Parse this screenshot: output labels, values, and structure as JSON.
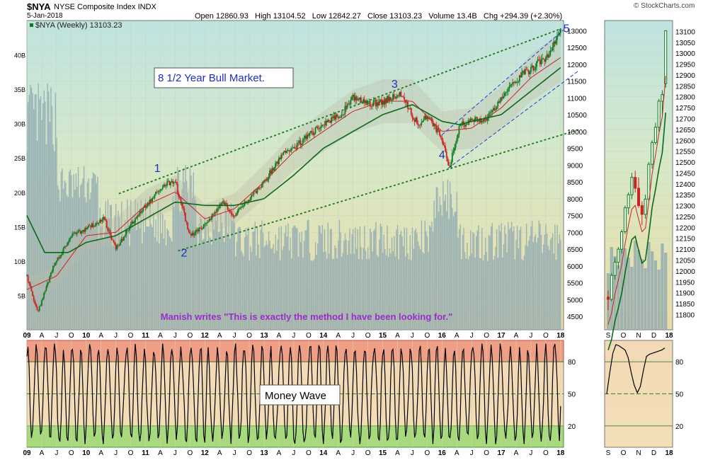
{
  "header": {
    "symbol": "$NYA",
    "name": "NYSE Composite Index  INDX",
    "date": "5-Jan-2018",
    "ohlc": "Open 12860.93   High 13104.52   Low 12842.27   Close 13103.23   Volume 13.4B   Chg +294.39 (+2.30%)",
    "brand": "© StockCharts.com"
  },
  "chart_data": [
    {
      "type": "line",
      "subtype": "candlestick-with-volume",
      "legend": "$NYA (Weekly) 13103.23",
      "title_annotation": "8 1/2 Year Bull Market.",
      "quote": "Manish writes \"This is exactly the method I have been looking for.\"",
      "ylim": [
        4100,
        13300
      ],
      "y_ticks": [
        4500,
        5000,
        5500,
        6000,
        6500,
        7000,
        7500,
        8000,
        8500,
        9000,
        9500,
        10000,
        10500,
        11000,
        11500,
        12000,
        12500,
        13000
      ],
      "volume_ticks": [
        "5B",
        "10B",
        "15B",
        "20B",
        "25B",
        "30B",
        "35B",
        "40B"
      ],
      "volume_ylim": [
        0,
        45
      ],
      "x_ticks": [
        "09",
        "A",
        "J",
        "O",
        "10",
        "A",
        "J",
        "O",
        "11",
        "A",
        "J",
        "O",
        "12",
        "A",
        "J",
        "O",
        "13",
        "A",
        "J",
        "O",
        "14",
        "A",
        "J",
        "O",
        "15",
        "A",
        "J",
        "O",
        "16",
        "A",
        "J",
        "O",
        "17",
        "A",
        "J",
        "O",
        "18"
      ],
      "x_range": [
        2009.0,
        2018.05
      ],
      "series": [
        {
          "name": "price",
          "color": "#cc2222",
          "x": [
            2009.0,
            2009.18,
            2009.45,
            2009.75,
            2010.0,
            2010.3,
            2010.5,
            2010.75,
            2011.0,
            2011.3,
            2011.5,
            2011.75,
            2012.0,
            2012.3,
            2012.5,
            2012.75,
            2013.0,
            2013.3,
            2013.5,
            2013.75,
            2014.0,
            2014.3,
            2014.5,
            2014.75,
            2015.0,
            2015.3,
            2015.6,
            2015.75,
            2016.0,
            2016.12,
            2016.3,
            2016.5,
            2016.75,
            2017.0,
            2017.3,
            2017.6,
            2017.8,
            2018.02
          ],
          "y": [
            5700,
            4600,
            6000,
            6900,
            7100,
            7400,
            6500,
            7200,
            7800,
            8400,
            8500,
            6900,
            7200,
            7900,
            7500,
            8000,
            8500,
            9300,
            9500,
            9900,
            10200,
            10500,
            11000,
            10800,
            10900,
            11100,
            10200,
            10500,
            9800,
            8900,
            10200,
            10300,
            10400,
            11000,
            11600,
            12000,
            12300,
            13100
          ]
        },
        {
          "name": "moving-average-fast",
          "color": "#cc2222",
          "x": [
            2009.0,
            2009.5,
            2010.0,
            2010.5,
            2011.0,
            2011.5,
            2012.0,
            2012.5,
            2013.0,
            2013.5,
            2014.0,
            2014.5,
            2015.0,
            2015.5,
            2016.0,
            2016.5,
            2017.0,
            2017.5,
            2018.0
          ],
          "y": [
            5300,
            5700,
            6900,
            7000,
            7800,
            8200,
            7400,
            7700,
            8500,
            9400,
            10000,
            10600,
            10900,
            10900,
            10000,
            10100,
            10700,
            11600,
            12200
          ]
        },
        {
          "name": "moving-average-slow",
          "color": "#0a6a1a",
          "x": [
            2009.0,
            2009.3,
            2009.7,
            2010.0,
            2010.5,
            2011.0,
            2011.5,
            2012.0,
            2012.5,
            2013.0,
            2013.5,
            2014.0,
            2014.5,
            2015.0,
            2015.5,
            2016.0,
            2016.3,
            2016.5,
            2017.0,
            2017.5,
            2018.0
          ],
          "y": [
            7500,
            6400,
            6400,
            6700,
            6900,
            7400,
            7900,
            7800,
            7800,
            8000,
            8700,
            9500,
            10000,
            10500,
            10800,
            10300,
            10200,
            10300,
            10500,
            11200,
            11900
          ]
        }
      ],
      "wave_labels": [
        {
          "label": "1",
          "x": 2011.2,
          "y": 8800
        },
        {
          "label": "2",
          "x": 2011.65,
          "y": 6280
        },
        {
          "label": "3",
          "x": 2015.2,
          "y": 11300
        },
        {
          "label": "4",
          "x": 2016.0,
          "y": 9200
        },
        {
          "label": "5",
          "x": 2018.1,
          "y": 12950
        }
      ],
      "trendlines": [
        {
          "name": "upper-channel",
          "color": "#1a7a1a",
          "x": [
            2010.55,
            2018.0
          ],
          "y": [
            8150,
            13050
          ]
        },
        {
          "name": "lower-channel",
          "color": "#1a7a1a",
          "x": [
            2011.55,
            2018.3
          ],
          "y": [
            6450,
            10050
          ]
        },
        {
          "name": "inner-upper",
          "color": "#1a3fd0",
          "x": [
            2016.0,
            2018.1
          ],
          "y": [
            9900,
            13100
          ]
        },
        {
          "name": "inner-lower",
          "color": "#1a3fd0",
          "x": [
            2016.1,
            2018.3
          ],
          "y": [
            8900,
            11800
          ]
        }
      ]
    },
    {
      "type": "line",
      "subtype": "candlestick-zoom",
      "ylim": [
        11730,
        13150
      ],
      "y_ticks": [
        11800,
        11850,
        11900,
        11950,
        12000,
        12050,
        12100,
        12150,
        12200,
        12250,
        12300,
        12350,
        12400,
        12450,
        12500,
        12550,
        12600,
        12650,
        12700,
        12750,
        12800,
        12850,
        12900,
        12950,
        13000,
        13050,
        13100
      ],
      "x_ticks": [
        "S",
        "O",
        "N",
        "D",
        "18"
      ],
      "candles": [
        {
          "o": 11880,
          "h": 11910,
          "l": 11820,
          "c": 11870
        },
        {
          "o": 11870,
          "h": 11990,
          "l": 11860,
          "c": 11980
        },
        {
          "o": 11980,
          "h": 12060,
          "l": 11960,
          "c": 12040
        },
        {
          "o": 12040,
          "h": 12110,
          "l": 12010,
          "c": 12100
        },
        {
          "o": 12100,
          "h": 12190,
          "l": 12080,
          "c": 12180
        },
        {
          "o": 12180,
          "h": 12300,
          "l": 12170,
          "c": 12290
        },
        {
          "o": 12290,
          "h": 12360,
          "l": 12260,
          "c": 12350
        },
        {
          "o": 12350,
          "h": 12450,
          "l": 12330,
          "c": 12430
        },
        {
          "o": 12430,
          "h": 12460,
          "l": 12360,
          "c": 12380
        },
        {
          "o": 12380,
          "h": 12430,
          "l": 12290,
          "c": 12300
        },
        {
          "o": 12300,
          "h": 12320,
          "l": 12210,
          "c": 12260
        },
        {
          "o": 12260,
          "h": 12350,
          "l": 12240,
          "c": 12330
        },
        {
          "o": 12330,
          "h": 12500,
          "l": 12320,
          "c": 12490
        },
        {
          "o": 12490,
          "h": 12600,
          "l": 12470,
          "c": 12590
        },
        {
          "o": 12590,
          "h": 12680,
          "l": 12580,
          "c": 12660
        },
        {
          "o": 12660,
          "h": 12790,
          "l": 12640,
          "c": 12780
        },
        {
          "o": 12780,
          "h": 12830,
          "l": 12720,
          "c": 12810
        },
        {
          "o": 12860,
          "h": 13105,
          "l": 12842,
          "c": 13103
        }
      ]
    },
    {
      "type": "line",
      "subtype": "oscillator",
      "label": "Money Wave",
      "ylim": [
        0,
        100
      ],
      "y_ticks": [
        20,
        50,
        80
      ],
      "overbought": 80,
      "oversold": 20,
      "x_ticks": [
        "09",
        "A",
        "J",
        "O",
        "10",
        "A",
        "J",
        "O",
        "11",
        "A",
        "J",
        "O",
        "12",
        "A",
        "J",
        "O",
        "13",
        "A",
        "J",
        "O",
        "14",
        "A",
        "J",
        "O",
        "15",
        "A",
        "J",
        "O",
        "16",
        "A",
        "J",
        "O",
        "17",
        "A",
        "J",
        "O",
        "18"
      ],
      "zoom_x_ticks": [
        "S",
        "O",
        "N",
        "D",
        "18"
      ],
      "zoom_values": [
        50,
        70,
        88,
        96,
        95,
        93,
        91,
        84,
        70,
        58,
        51,
        57,
        72,
        85,
        87,
        88,
        89,
        90,
        91,
        93
      ]
    }
  ]
}
